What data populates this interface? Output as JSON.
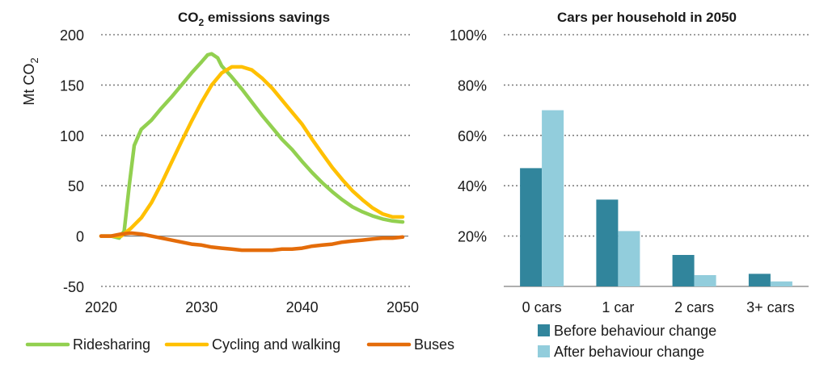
{
  "chart_data": [
    {
      "type": "line",
      "title_main": "CO",
      "title_sub": "2",
      "title_rest": " emissions savings",
      "ylabel_main": "Mt CO",
      "ylabel_sub": "2",
      "xlabel": "",
      "xlim": [
        2020,
        2050
      ],
      "ylim": [
        -50,
        200
      ],
      "x_ticks": [
        2020,
        2030,
        2040,
        2050
      ],
      "y_ticks": [
        -50,
        0,
        50,
        100,
        150,
        200
      ],
      "grid": true,
      "legend_position": "bottom",
      "series": [
        {
          "name": "Ridesharing",
          "color": "#92d050",
          "points": [
            [
              2020,
              0
            ],
            [
              2021,
              0
            ],
            [
              2021.8,
              -2
            ],
            [
              2022.3,
              5
            ],
            [
              2022.8,
              50
            ],
            [
              2023.3,
              90
            ],
            [
              2024,
              106
            ],
            [
              2025,
              115
            ],
            [
              2026,
              127
            ],
            [
              2027,
              138
            ],
            [
              2028,
              150
            ],
            [
              2029,
              162
            ],
            [
              2030,
              173
            ],
            [
              2030.6,
              180
            ],
            [
              2031,
              181
            ],
            [
              2031.6,
              177
            ],
            [
              2032,
              169
            ],
            [
              2033,
              158
            ],
            [
              2034,
              146
            ],
            [
              2035,
              133
            ],
            [
              2036,
              120
            ],
            [
              2037,
              108
            ],
            [
              2038,
              96
            ],
            [
              2039,
              86
            ],
            [
              2040,
              74
            ],
            [
              2041,
              63
            ],
            [
              2042,
              53
            ],
            [
              2043,
              44
            ],
            [
              2044,
              36
            ],
            [
              2045,
              29
            ],
            [
              2046,
              24
            ],
            [
              2047,
              20
            ],
            [
              2048,
              17
            ],
            [
              2049,
              15
            ],
            [
              2050,
              14
            ]
          ]
        },
        {
          "name": "Cycling and walking",
          "color": "#ffc000",
          "points": [
            [
              2020,
              0
            ],
            [
              2021,
              0
            ],
            [
              2022,
              0
            ],
            [
              2023,
              8
            ],
            [
              2024,
              18
            ],
            [
              2025,
              33
            ],
            [
              2026,
              52
            ],
            [
              2027,
              73
            ],
            [
              2028,
              94
            ],
            [
              2029,
              114
            ],
            [
              2030,
              133
            ],
            [
              2031,
              150
            ],
            [
              2032,
              162
            ],
            [
              2033,
              168
            ],
            [
              2034,
              168
            ],
            [
              2035,
              165
            ],
            [
              2036,
              157
            ],
            [
              2037,
              147
            ],
            [
              2038,
              135
            ],
            [
              2039,
              123
            ],
            [
              2040,
              111
            ],
            [
              2041,
              96
            ],
            [
              2042,
              82
            ],
            [
              2043,
              68
            ],
            [
              2044,
              56
            ],
            [
              2045,
              45
            ],
            [
              2046,
              36
            ],
            [
              2047,
              28
            ],
            [
              2048,
              22
            ],
            [
              2049,
              19
            ],
            [
              2050,
              19
            ]
          ]
        },
        {
          "name": "Buses",
          "color": "#e46c0a",
          "points": [
            [
              2020,
              0
            ],
            [
              2021,
              0
            ],
            [
              2022,
              2
            ],
            [
              2023,
              3
            ],
            [
              2024,
              2
            ],
            [
              2025,
              0
            ],
            [
              2026,
              -2
            ],
            [
              2027,
              -4
            ],
            [
              2028,
              -6
            ],
            [
              2029,
              -8
            ],
            [
              2030,
              -9
            ],
            [
              2031,
              -11
            ],
            [
              2032,
              -12
            ],
            [
              2033,
              -13
            ],
            [
              2034,
              -14
            ],
            [
              2035,
              -14
            ],
            [
              2036,
              -14
            ],
            [
              2037,
              -14
            ],
            [
              2038,
              -13
            ],
            [
              2039,
              -13
            ],
            [
              2040,
              -12
            ],
            [
              2041,
              -10
            ],
            [
              2042,
              -9
            ],
            [
              2043,
              -8
            ],
            [
              2044,
              -6
            ],
            [
              2045,
              -5
            ],
            [
              2046,
              -4
            ],
            [
              2047,
              -3
            ],
            [
              2048,
              -2
            ],
            [
              2049,
              -2
            ],
            [
              2050,
              -1
            ]
          ]
        }
      ]
    },
    {
      "type": "bar",
      "title": "Cars per household in 2050",
      "xlabel": "",
      "ylabel": "",
      "categories": [
        "0 cars",
        "1 car",
        "2 cars",
        "3+ cars"
      ],
      "ylim": [
        0,
        100
      ],
      "y_ticks": [
        20,
        40,
        60,
        80,
        100
      ],
      "y_tick_labels": [
        "20%",
        "40%",
        "60%",
        "80%",
        "100%"
      ],
      "grid": true,
      "legend_position": "bottom",
      "series": [
        {
          "name": "Before behaviour change",
          "color": "#31859c",
          "values": [
            47,
            34.5,
            12.5,
            5
          ]
        },
        {
          "name": "After behaviour change",
          "color": "#92cddc",
          "values": [
            70,
            22,
            4.5,
            2
          ]
        }
      ]
    }
  ]
}
